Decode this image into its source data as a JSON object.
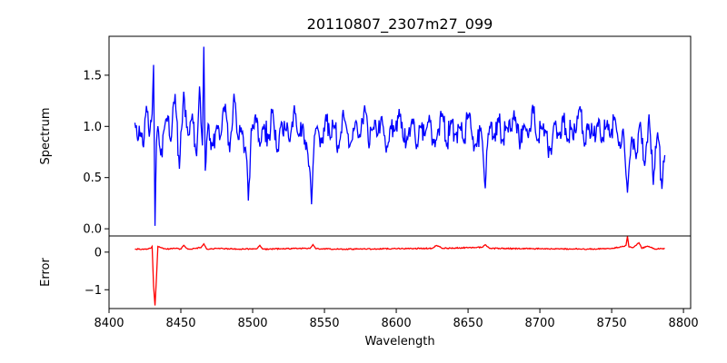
{
  "chart_data": [
    {
      "type": "line",
      "panel": "top",
      "title": "20110807_2307m27_099",
      "ylabel": "Spectrum",
      "xlabel": "",
      "xlim": [
        8400,
        8805
      ],
      "ylim": [
        -0.07,
        1.88
      ],
      "yticks": [
        0.0,
        0.5,
        1.0,
        1.5
      ],
      "ytick_labels": [
        "0.0",
        "0.5",
        "1.0",
        "1.5"
      ],
      "color": "#0000ff",
      "series": [
        {
          "name": "Spectrum",
          "x": [
            8418,
            8420,
            8422,
            8424,
            8426,
            8428,
            8430,
            8431,
            8432,
            8433,
            8434,
            8436,
            8438,
            8440,
            8443,
            8446,
            8449,
            8452,
            8455,
            8458,
            8461,
            8463,
            8465,
            8466,
            8467,
            8469,
            8472,
            8475,
            8478,
            8481,
            8484,
            8487,
            8490,
            8493,
            8496,
            8497,
            8499,
            8502,
            8505,
            8508,
            8511,
            8514,
            8517,
            8520,
            8523,
            8526,
            8529,
            8532,
            8535,
            8538,
            8540,
            8541,
            8542,
            8543,
            8545,
            8548,
            8551,
            8554,
            8557,
            8560,
            8563,
            8566,
            8569,
            8572,
            8575,
            8578,
            8581,
            8584,
            8587,
            8590,
            8593,
            8596,
            8599,
            8602,
            8605,
            8608,
            8611,
            8614,
            8617,
            8620,
            8623,
            8626,
            8629,
            8632,
            8635,
            8638,
            8641,
            8644,
            8647,
            8650,
            8653,
            8656,
            8659,
            8661,
            8662,
            8663,
            8665,
            8668,
            8671,
            8674,
            8677,
            8680,
            8683,
            8686,
            8689,
            8692,
            8695,
            8698,
            8701,
            8704,
            8707,
            8710,
            8713,
            8716,
            8719,
            8722,
            8725,
            8728,
            8731,
            8734,
            8737,
            8740,
            8743,
            8746,
            8749,
            8752,
            8755,
            8758,
            8760,
            8761,
            8762,
            8764,
            8767,
            8770,
            8773,
            8776,
            8779,
            8782,
            8785,
            8787
          ],
          "y": [
            1.05,
            0.85,
            0.95,
            0.8,
            1.2,
            0.9,
            1.1,
            1.6,
            0.03,
            0.85,
            1.0,
            0.7,
            0.95,
            1.1,
            0.85,
            1.3,
            0.6,
            1.35,
            0.9,
            1.1,
            0.7,
            1.4,
            0.8,
            1.8,
            0.55,
            1.05,
            0.8,
            1.0,
            0.9,
            1.2,
            0.75,
            1.3,
            0.85,
            0.95,
            0.65,
            0.3,
            0.95,
            1.1,
            0.8,
            1.0,
            0.9,
            1.15,
            0.75,
            1.05,
            0.95,
            0.85,
            1.2,
            0.9,
            1.0,
            0.8,
            0.55,
            0.25,
            0.6,
            0.9,
            1.0,
            0.85,
            1.1,
            0.9,
            1.0,
            0.8,
            1.15,
            0.95,
            0.85,
            1.05,
            0.9,
            1.2,
            0.8,
            1.0,
            0.9,
            1.1,
            0.75,
            1.0,
            0.95,
            1.15,
            0.85,
            0.9,
            1.05,
            0.8,
            1.0,
            0.9,
            1.1,
            0.85,
            0.95,
            1.15,
            0.8,
            1.05,
            0.9,
            1.0,
            0.85,
            1.1,
            0.9,
            0.8,
            1.0,
            0.6,
            0.37,
            0.75,
            1.0,
            0.9,
            1.1,
            0.85,
            1.0,
            0.95,
            1.1,
            0.8,
            1.0,
            0.9,
            1.2,
            0.85,
            1.0,
            0.95,
            0.75,
            1.05,
            0.9,
            1.1,
            0.85,
            1.0,
            0.95,
            1.2,
            0.8,
            1.0,
            0.9,
            1.05,
            0.85,
            1.0,
            0.9,
            1.1,
            0.8,
            1.0,
            0.55,
            0.35,
            0.6,
            0.9,
            0.7,
            1.05,
            0.6,
            1.1,
            0.45,
            0.95,
            0.4,
            0.7
          ],
          "jitter_amplitude": 0.13
        }
      ]
    },
    {
      "type": "line",
      "panel": "bottom",
      "title": "",
      "ylabel": "Error",
      "xlabel": "Wavelength",
      "xlim": [
        8400,
        8805
      ],
      "ylim": [
        -1.5,
        0.43
      ],
      "yticks": [
        0,
        -1
      ],
      "ytick_labels": [
        "0",
        "−1"
      ],
      "xticks": [
        8400,
        8450,
        8500,
        8550,
        8600,
        8650,
        8700,
        8750,
        8800
      ],
      "xtick_labels": [
        "8400",
        "8450",
        "8500",
        "8550",
        "8600",
        "8650",
        "8700",
        "8750",
        "8800"
      ],
      "color": "#ff0000",
      "series": [
        {
          "name": "Error",
          "x": [
            8418,
            8425,
            8429,
            8430,
            8431,
            8432,
            8433,
            8434,
            8436,
            8440,
            8446,
            8450,
            8452,
            8455,
            8460,
            8464,
            8466,
            8468,
            8475,
            8490,
            8503,
            8505,
            8507,
            8520,
            8540,
            8542,
            8544,
            8560,
            8600,
            8625,
            8628,
            8632,
            8650,
            8660,
            8662,
            8665,
            8700,
            8740,
            8755,
            8760,
            8761,
            8762,
            8765,
            8769,
            8771,
            8775,
            8780,
            8787
          ],
          "y": [
            0.08,
            0.08,
            0.1,
            0.15,
            -0.9,
            -1.42,
            -0.7,
            0.15,
            0.12,
            0.08,
            0.1,
            0.08,
            0.18,
            0.08,
            0.1,
            0.12,
            0.22,
            0.08,
            0.1,
            0.08,
            0.09,
            0.18,
            0.08,
            0.09,
            0.1,
            0.2,
            0.09,
            0.08,
            0.09,
            0.1,
            0.18,
            0.1,
            0.12,
            0.13,
            0.2,
            0.1,
            0.09,
            0.08,
            0.12,
            0.18,
            0.42,
            0.14,
            0.12,
            0.25,
            0.1,
            0.16,
            0.08,
            0.1
          ],
          "jitter_amplitude": 0.015
        }
      ]
    }
  ]
}
